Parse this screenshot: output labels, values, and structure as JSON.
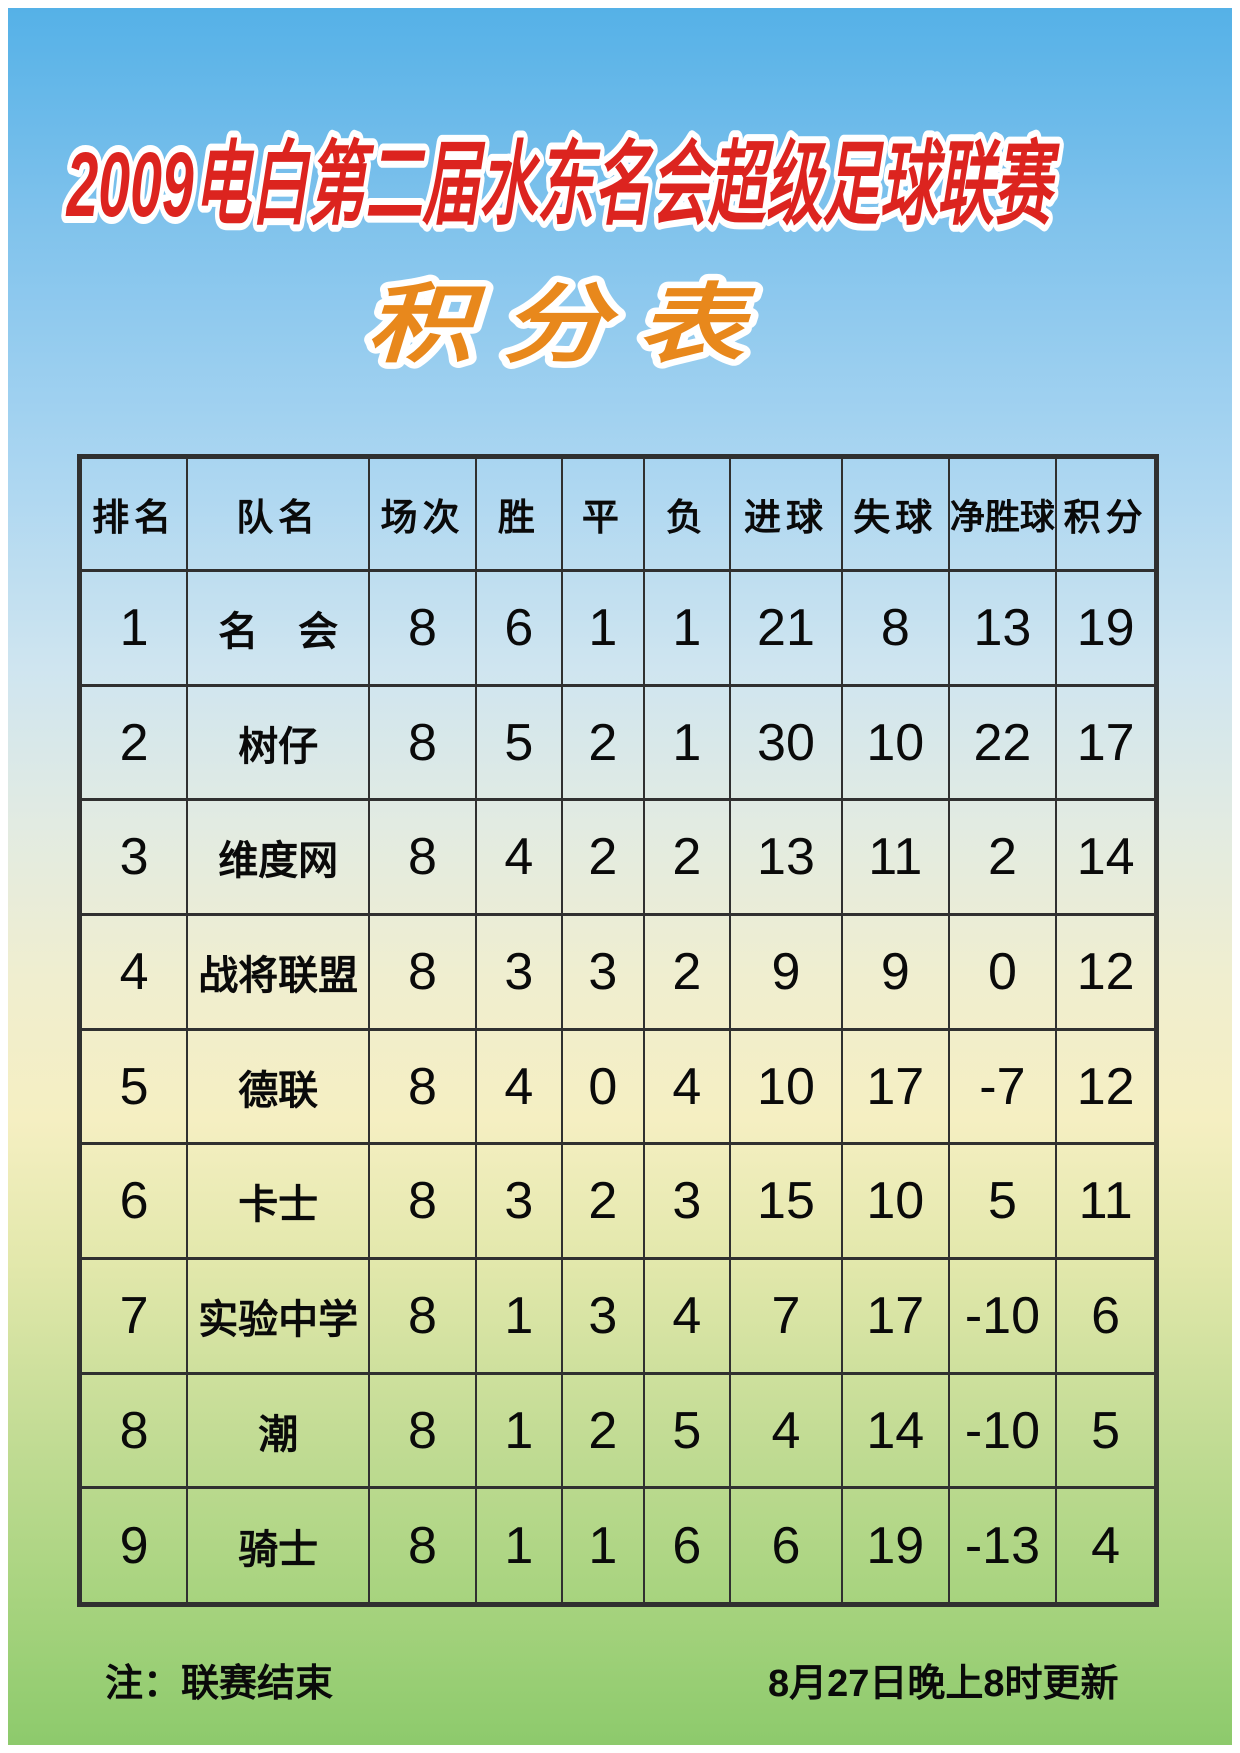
{
  "poster": {
    "title": "2009电白第二届水东名会超级足球联赛",
    "subtitle": "积 分 表"
  },
  "table": {
    "columns": [
      "排名",
      "队名",
      "场次",
      "胜",
      "平",
      "负",
      "进球",
      "失球",
      "净胜球",
      "积分"
    ],
    "rows": [
      [
        "1",
        "名　会",
        "8",
        "6",
        "1",
        "1",
        "21",
        "8",
        "13",
        "19"
      ],
      [
        "2",
        "树仔",
        "8",
        "5",
        "2",
        "1",
        "30",
        "10",
        "22",
        "17"
      ],
      [
        "3",
        "维度网",
        "8",
        "4",
        "2",
        "2",
        "13",
        "11",
        "2",
        "14"
      ],
      [
        "4",
        "战将联盟",
        "8",
        "3",
        "3",
        "2",
        "9",
        "9",
        "0",
        "12"
      ],
      [
        "5",
        "德联",
        "8",
        "4",
        "0",
        "4",
        "10",
        "17",
        "-7",
        "12"
      ],
      [
        "6",
        "卡士",
        "8",
        "3",
        "2",
        "3",
        "15",
        "10",
        "5",
        "11"
      ],
      [
        "7",
        "实验中学",
        "8",
        "1",
        "3",
        "4",
        "7",
        "17",
        "-10",
        "6"
      ],
      [
        "8",
        "潮",
        "8",
        "1",
        "2",
        "5",
        "4",
        "14",
        "-10",
        "5"
      ],
      [
        "9",
        "骑士",
        "8",
        "1",
        "1",
        "6",
        "6",
        "19",
        "-13",
        "4"
      ]
    ]
  },
  "footer": {
    "note": "注：联赛结束",
    "updated": "8月27日晚上8时更新"
  },
  "colors": {
    "title_red": "#dc241f",
    "subtitle_orange": "#e8881c",
    "table_border": "#303030",
    "text_black": "#0a0a0a",
    "gradient_stops": [
      "#55b1e7 0%",
      "#7fc2ec 12%",
      "#a9d5f1 26%",
      "#cfe5f0 38%",
      "#e2ebe2 47%",
      "#f0eecf 56%",
      "#f5efc2 64%",
      "#e3e8ac 72%",
      "#c3dc95 82%",
      "#a9d480 91%",
      "#8dca6c 100%"
    ]
  }
}
